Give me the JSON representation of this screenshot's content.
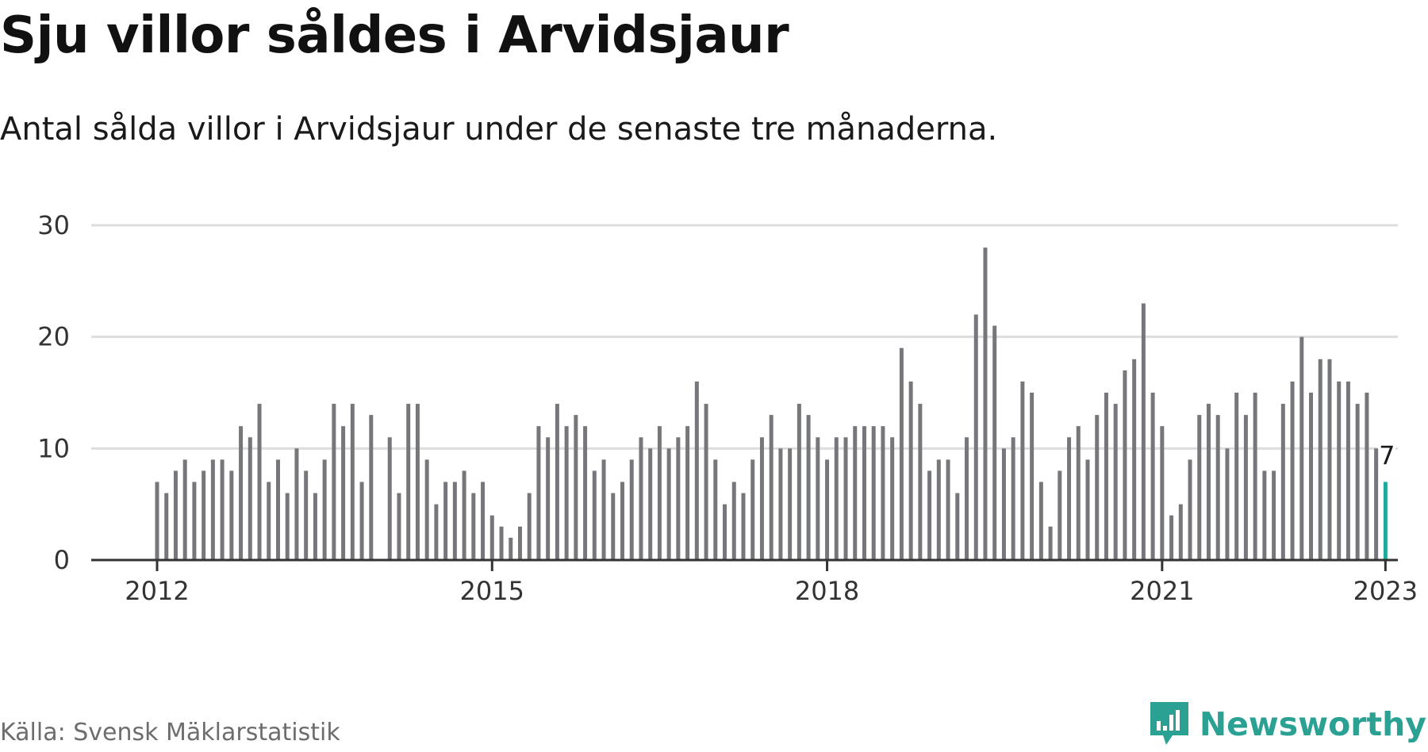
{
  "header": {
    "title": "Sju villor såldes i Arvidsjaur",
    "subtitle": "Antal sålda villor i Arvidsjaur under de senaste tre månaderna."
  },
  "footer": {
    "source": "Källa: Svensk Mäklarstatistik",
    "brand": "Newsworthy"
  },
  "colors": {
    "bar": "#77777b",
    "highlight": "#1fa99a",
    "grid": "#dddddd",
    "axis": "#333333",
    "brand": "#2aa193"
  },
  "chart_data": {
    "type": "bar",
    "title": "Sju villor såldes i Arvidsjaur",
    "subtitle": "Antal sålda villor i Arvidsjaur under de senaste tre månaderna.",
    "xlabel": "",
    "ylabel": "",
    "ylim": [
      0,
      30
    ],
    "yticks": [
      "0",
      "10",
      "20",
      "30"
    ],
    "xticks": [
      "2012",
      "2015",
      "2018",
      "2021",
      "2023"
    ],
    "start": "2012-01",
    "frequency": "monthly",
    "highlight_label": "7",
    "values": [
      7,
      6,
      8,
      9,
      7,
      8,
      9,
      9,
      8,
      12,
      11,
      14,
      7,
      9,
      6,
      10,
      8,
      6,
      9,
      14,
      12,
      14,
      7,
      13,
      0,
      11,
      6,
      14,
      14,
      9,
      5,
      7,
      7,
      8,
      6,
      7,
      4,
      3,
      2,
      3,
      6,
      12,
      11,
      14,
      12,
      13,
      12,
      8,
      9,
      6,
      7,
      9,
      11,
      10,
      12,
      10,
      11,
      12,
      16,
      14,
      9,
      5,
      7,
      6,
      9,
      11,
      13,
      10,
      10,
      14,
      13,
      11,
      9,
      11,
      11,
      12,
      12,
      12,
      12,
      11,
      19,
      16,
      14,
      8,
      9,
      9,
      6,
      11,
      22,
      28,
      21,
      10,
      11,
      16,
      15,
      7,
      3,
      8,
      11,
      12,
      9,
      13,
      15,
      14,
      17,
      18,
      23,
      15,
      12,
      4,
      5,
      9,
      13,
      14,
      13,
      10,
      15,
      13,
      15,
      8,
      8,
      14,
      16,
      20,
      15,
      18,
      18,
      16,
      16,
      14,
      15,
      10,
      7
    ]
  }
}
